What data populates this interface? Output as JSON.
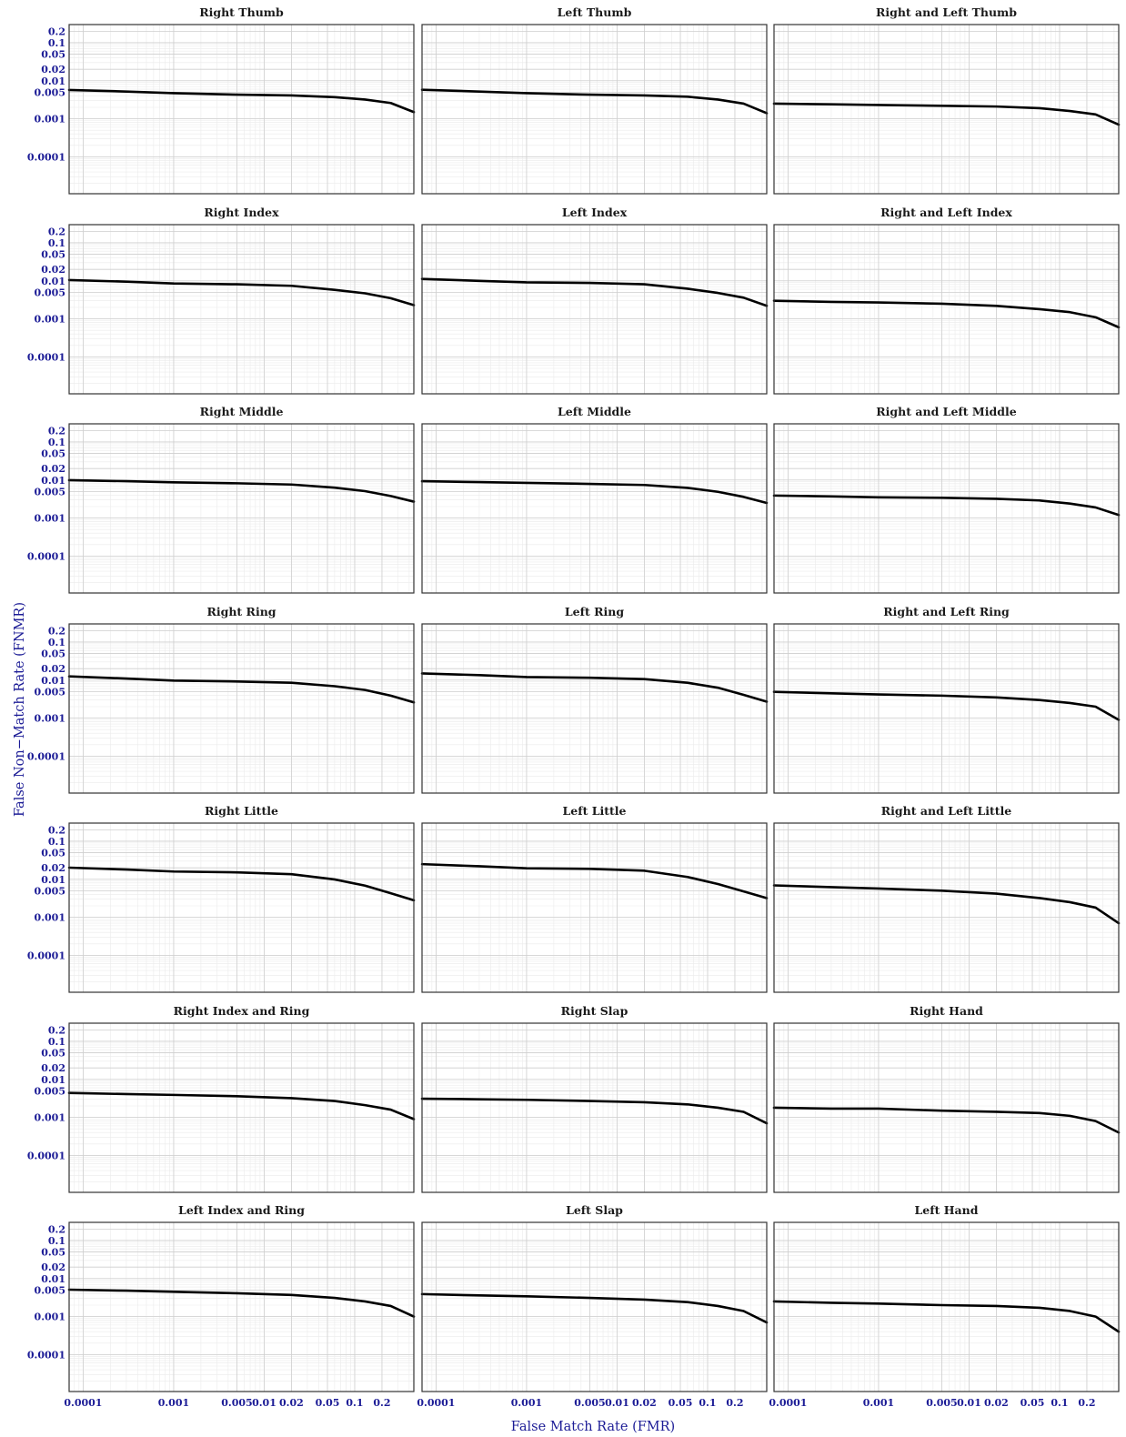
{
  "chart_data": {
    "type": "line",
    "layout": "facet-grid 7x3",
    "xlabel": "False Match Rate (FMR)",
    "ylabel": "False Non−Match Rate (FNMR)",
    "x_scale": "log",
    "y_scale": "log",
    "xlim": [
      7e-05,
      0.45
    ],
    "ylim": [
      1.07e-05,
      0.3
    ],
    "x_ticks": [
      {
        "value": 0.0001,
        "label": "0.0001"
      },
      {
        "value": 0.001,
        "label": "0.001"
      },
      {
        "value": 0.005,
        "label": "0.005"
      },
      {
        "value": 0.01,
        "label": "0.01"
      },
      {
        "value": 0.02,
        "label": "0.02"
      },
      {
        "value": 0.05,
        "label": "0.05"
      },
      {
        "value": 0.1,
        "label": "0.1"
      },
      {
        "value": 0.2,
        "label": "0.2"
      }
    ],
    "y_ticks": [
      {
        "value": 0.2,
        "label": "0.2"
      },
      {
        "value": 0.1,
        "label": "0.1"
      },
      {
        "value": 0.05,
        "label": "0.05"
      },
      {
        "value": 0.02,
        "label": "0.02"
      },
      {
        "value": 0.01,
        "label": "0.01"
      },
      {
        "value": 0.005,
        "label": "0.005"
      },
      {
        "value": 0.001,
        "label": "0.001"
      },
      {
        "value": 0.0001,
        "label": "0.0001"
      }
    ],
    "grid": true,
    "panels": [
      {
        "title": "Right Thumb",
        "x": [
          7e-05,
          0.0003,
          0.001,
          0.005,
          0.02,
          0.06,
          0.13,
          0.25,
          0.45
        ],
        "y": [
          0.0057,
          0.0052,
          0.0047,
          0.0043,
          0.0041,
          0.0037,
          0.0032,
          0.0026,
          0.0015
        ]
      },
      {
        "title": "Left Thumb",
        "x": [
          7e-05,
          0.0003,
          0.001,
          0.005,
          0.02,
          0.06,
          0.13,
          0.25,
          0.45
        ],
        "y": [
          0.0058,
          0.0052,
          0.0047,
          0.0043,
          0.0041,
          0.0038,
          0.0032,
          0.0025,
          0.0014
        ]
      },
      {
        "title": "Right and Left Thumb",
        "x": [
          7e-05,
          0.0003,
          0.001,
          0.005,
          0.02,
          0.06,
          0.13,
          0.25,
          0.45
        ],
        "y": [
          0.0025,
          0.0024,
          0.0023,
          0.0022,
          0.0021,
          0.0019,
          0.0016,
          0.0013,
          0.0007
        ]
      },
      {
        "title": "Right Index",
        "x": [
          7e-05,
          0.0003,
          0.001,
          0.005,
          0.02,
          0.06,
          0.13,
          0.25,
          0.45
        ],
        "y": [
          0.0105,
          0.0095,
          0.0085,
          0.0081,
          0.0074,
          0.0058,
          0.0047,
          0.0035,
          0.0023
        ]
      },
      {
        "title": "Left Index",
        "x": [
          7e-05,
          0.0003,
          0.001,
          0.005,
          0.02,
          0.06,
          0.13,
          0.25,
          0.45
        ],
        "y": [
          0.0112,
          0.01,
          0.0091,
          0.0088,
          0.0081,
          0.0062,
          0.0048,
          0.0036,
          0.0022
        ]
      },
      {
        "title": "Right and Left Index",
        "x": [
          7e-05,
          0.0003,
          0.001,
          0.005,
          0.02,
          0.06,
          0.13,
          0.25,
          0.45
        ],
        "y": [
          0.003,
          0.0028,
          0.0027,
          0.0025,
          0.0022,
          0.0018,
          0.0015,
          0.0011,
          0.0006
        ]
      },
      {
        "title": "Right Middle",
        "x": [
          7e-05,
          0.0003,
          0.001,
          0.005,
          0.02,
          0.06,
          0.13,
          0.25,
          0.45
        ],
        "y": [
          0.0099,
          0.0093,
          0.0087,
          0.0082,
          0.0076,
          0.0063,
          0.0051,
          0.0038,
          0.0027
        ]
      },
      {
        "title": "Left Middle",
        "x": [
          7e-05,
          0.0003,
          0.001,
          0.005,
          0.02,
          0.06,
          0.13,
          0.25,
          0.45
        ],
        "y": [
          0.0093,
          0.0088,
          0.0084,
          0.0079,
          0.0074,
          0.0062,
          0.0049,
          0.0036,
          0.0025
        ]
      },
      {
        "title": "Right and Left Middle",
        "x": [
          7e-05,
          0.0003,
          0.001,
          0.005,
          0.02,
          0.06,
          0.13,
          0.25,
          0.45
        ],
        "y": [
          0.0039,
          0.0037,
          0.0035,
          0.0034,
          0.0032,
          0.0029,
          0.0024,
          0.0019,
          0.0012
        ]
      },
      {
        "title": "Right Ring",
        "x": [
          7e-05,
          0.0003,
          0.001,
          0.005,
          0.02,
          0.06,
          0.13,
          0.25,
          0.45
        ],
        "y": [
          0.0125,
          0.011,
          0.0097,
          0.0092,
          0.0085,
          0.0069,
          0.0055,
          0.0039,
          0.0026
        ]
      },
      {
        "title": "Left Ring",
        "x": [
          7e-05,
          0.0003,
          0.001,
          0.005,
          0.02,
          0.06,
          0.13,
          0.25,
          0.45
        ],
        "y": [
          0.015,
          0.0135,
          0.012,
          0.0115,
          0.0106,
          0.0085,
          0.0063,
          0.0041,
          0.0027
        ]
      },
      {
        "title": "Right and Left Ring",
        "x": [
          7e-05,
          0.0003,
          0.001,
          0.005,
          0.02,
          0.06,
          0.13,
          0.25,
          0.45
        ],
        "y": [
          0.0049,
          0.0045,
          0.0042,
          0.0039,
          0.0035,
          0.003,
          0.0025,
          0.002,
          0.0009
        ]
      },
      {
        "title": "Right Little",
        "x": [
          7e-05,
          0.0003,
          0.001,
          0.005,
          0.02,
          0.06,
          0.13,
          0.25,
          0.45
        ],
        "y": [
          0.0202,
          0.018,
          0.016,
          0.0152,
          0.0136,
          0.0099,
          0.0068,
          0.0043,
          0.0028
        ]
      },
      {
        "title": "Left Little",
        "x": [
          7e-05,
          0.0003,
          0.001,
          0.005,
          0.02,
          0.06,
          0.13,
          0.25,
          0.45
        ],
        "y": [
          0.025,
          0.022,
          0.0195,
          0.0188,
          0.0168,
          0.0115,
          0.0075,
          0.0048,
          0.0032
        ]
      },
      {
        "title": "Right and Left Little",
        "x": [
          7e-05,
          0.0003,
          0.001,
          0.005,
          0.02,
          0.06,
          0.13,
          0.25,
          0.45
        ],
        "y": [
          0.0069,
          0.0062,
          0.0057,
          0.005,
          0.0042,
          0.0032,
          0.0025,
          0.0018,
          0.0007
        ]
      },
      {
        "title": "Right Index and Ring",
        "x": [
          7e-05,
          0.0003,
          0.001,
          0.005,
          0.02,
          0.06,
          0.13,
          0.25,
          0.45
        ],
        "y": [
          0.0044,
          0.0041,
          0.0039,
          0.0036,
          0.0032,
          0.0027,
          0.0021,
          0.0016,
          0.0009
        ]
      },
      {
        "title": "Right Slap",
        "x": [
          7e-05,
          0.0003,
          0.001,
          0.005,
          0.02,
          0.06,
          0.13,
          0.25,
          0.45
        ],
        "y": [
          0.0031,
          0.003,
          0.0029,
          0.0027,
          0.0025,
          0.0022,
          0.0018,
          0.0014,
          0.0007
        ]
      },
      {
        "title": "Right Hand",
        "x": [
          7e-05,
          0.0003,
          0.001,
          0.005,
          0.02,
          0.06,
          0.13,
          0.25,
          0.45
        ],
        "y": [
          0.0018,
          0.0017,
          0.0017,
          0.0015,
          0.0014,
          0.0013,
          0.0011,
          0.0008,
          0.0004
        ]
      },
      {
        "title": "Left Index and Ring",
        "x": [
          7e-05,
          0.0003,
          0.001,
          0.005,
          0.02,
          0.06,
          0.13,
          0.25,
          0.45
        ],
        "y": [
          0.0051,
          0.0048,
          0.0045,
          0.0041,
          0.0037,
          0.0031,
          0.0025,
          0.0019,
          0.001
        ]
      },
      {
        "title": "Left Slap",
        "x": [
          7e-05,
          0.0003,
          0.001,
          0.005,
          0.02,
          0.06,
          0.13,
          0.25,
          0.45
        ],
        "y": [
          0.0039,
          0.0036,
          0.0034,
          0.0031,
          0.0028,
          0.0024,
          0.0019,
          0.0014,
          0.0007
        ]
      },
      {
        "title": "Left Hand",
        "x": [
          7e-05,
          0.0003,
          0.001,
          0.005,
          0.02,
          0.06,
          0.13,
          0.25,
          0.45
        ],
        "y": [
          0.0025,
          0.0023,
          0.0022,
          0.002,
          0.0019,
          0.0017,
          0.0014,
          0.001,
          0.0004
        ]
      }
    ]
  }
}
